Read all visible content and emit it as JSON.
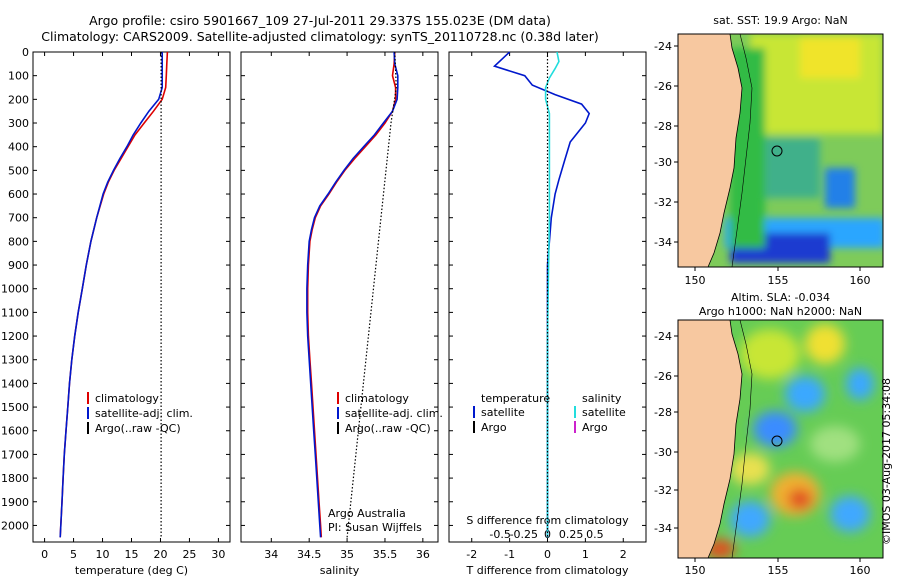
{
  "header": {
    "title_line1": "Argo profile: csiro 5901667_109 27-Jul-2011 29.337S 155.023E (DM data)",
    "title_line2": "Climatology: CARS2009. Satellite-adjusted climatology: synTS_20110728.nc (0.38d later)"
  },
  "colors": {
    "climatology": "#dd0000",
    "satellite": "#0018cc",
    "argo": "#000000",
    "s_satellite": "#22dddd",
    "s_argo": "#cc22cc",
    "land": "#f7c8a0"
  },
  "chart_data": [
    {
      "type": "line",
      "name": "temperature-profile",
      "xlabel": "temperature (deg C)",
      "xlim": [
        -2,
        32
      ],
      "ylim": [
        2070,
        0
      ],
      "xticks": [
        0,
        5,
        10,
        15,
        20,
        25,
        30
      ],
      "yticks": [
        0,
        100,
        200,
        300,
        400,
        500,
        600,
        700,
        800,
        900,
        1000,
        1100,
        1200,
        1300,
        1400,
        1500,
        1600,
        1700,
        1800,
        1900,
        2000
      ],
      "series": [
        {
          "name": "climatology",
          "color": "#dd0000",
          "points": [
            [
              21.2,
              0
            ],
            [
              21.1,
              50
            ],
            [
              21.0,
              100
            ],
            [
              20.9,
              150
            ],
            [
              20.3,
              200
            ],
            [
              18.8,
              250
            ],
            [
              17.2,
              300
            ],
            [
              15.6,
              350
            ],
            [
              14.4,
              400
            ],
            [
              13.2,
              450
            ],
            [
              12.0,
              500
            ],
            [
              11.0,
              550
            ],
            [
              10.2,
              600
            ],
            [
              9.0,
              700
            ],
            [
              8.0,
              800
            ],
            [
              7.2,
              900
            ],
            [
              6.5,
              1000
            ],
            [
              5.8,
              1100
            ],
            [
              5.2,
              1200
            ],
            [
              4.7,
              1300
            ],
            [
              4.3,
              1400
            ],
            [
              4.0,
              1500
            ],
            [
              3.7,
              1600
            ],
            [
              3.4,
              1700
            ],
            [
              3.2,
              1800
            ],
            [
              3.0,
              1900
            ],
            [
              2.8,
              2000
            ],
            [
              2.7,
              2050
            ]
          ]
        },
        {
          "name": "satellite-adj. clim.",
          "color": "#0018cc",
          "points": [
            [
              20.3,
              0
            ],
            [
              20.3,
              50
            ],
            [
              20.3,
              100
            ],
            [
              20.3,
              150
            ],
            [
              19.7,
              200
            ],
            [
              18.0,
              250
            ],
            [
              16.6,
              300
            ],
            [
              15.3,
              350
            ],
            [
              14.2,
              400
            ],
            [
              13.0,
              450
            ],
            [
              11.9,
              500
            ],
            [
              10.9,
              550
            ],
            [
              10.1,
              600
            ],
            [
              9.0,
              700
            ],
            [
              8.0,
              800
            ],
            [
              7.2,
              900
            ],
            [
              6.5,
              1000
            ],
            [
              5.8,
              1100
            ],
            [
              5.2,
              1200
            ],
            [
              4.7,
              1300
            ],
            [
              4.3,
              1400
            ],
            [
              4.0,
              1500
            ],
            [
              3.7,
              1600
            ],
            [
              3.4,
              1700
            ],
            [
              3.2,
              1800
            ],
            [
              3.0,
              1900
            ],
            [
              2.8,
              2000
            ],
            [
              2.7,
              2050
            ]
          ]
        },
        {
          "name": "Argo(..raw -QC)",
          "color": "#000000",
          "dotted": true,
          "points": [
            [
              20.1,
              0
            ],
            [
              20.1,
              2050
            ]
          ]
        }
      ],
      "legend": [
        "climatology",
        "satellite-adj. clim.",
        "Argo(..raw -QC)"
      ]
    },
    {
      "type": "line",
      "name": "salinity-profile",
      "xlabel": "salinity",
      "xlim": [
        33.6,
        36.2
      ],
      "ylim": [
        2070,
        0
      ],
      "xticks": [
        34,
        34.5,
        35,
        35.5,
        36
      ],
      "xticklabels": [
        "34",
        "34.5",
        "35",
        "35.5",
        "36"
      ],
      "series": [
        {
          "name": "climatology",
          "color": "#dd0000",
          "points": [
            [
              35.63,
              0
            ],
            [
              35.62,
              50
            ],
            [
              35.6,
              100
            ],
            [
              35.64,
              150
            ],
            [
              35.64,
              200
            ],
            [
              35.6,
              250
            ],
            [
              35.5,
              300
            ],
            [
              35.38,
              350
            ],
            [
              35.24,
              400
            ],
            [
              35.1,
              450
            ],
            [
              34.97,
              500
            ],
            [
              34.86,
              550
            ],
            [
              34.76,
              600
            ],
            [
              34.65,
              650
            ],
            [
              34.58,
              700
            ],
            [
              34.54,
              750
            ],
            [
              34.51,
              800
            ],
            [
              34.49,
              900
            ],
            [
              34.48,
              1000
            ],
            [
              34.48,
              1100
            ],
            [
              34.49,
              1200
            ],
            [
              34.51,
              1300
            ],
            [
              34.53,
              1400
            ],
            [
              34.55,
              1500
            ],
            [
              34.57,
              1600
            ],
            [
              34.59,
              1700
            ],
            [
              34.61,
              1800
            ],
            [
              34.63,
              1900
            ],
            [
              34.65,
              2000
            ],
            [
              34.66,
              2050
            ]
          ]
        },
        {
          "name": "satellite-adj. clim.",
          "color": "#0018cc",
          "points": [
            [
              35.62,
              0
            ],
            [
              35.63,
              50
            ],
            [
              35.67,
              100
            ],
            [
              35.67,
              150
            ],
            [
              35.66,
              200
            ],
            [
              35.6,
              250
            ],
            [
              35.48,
              300
            ],
            [
              35.36,
              350
            ],
            [
              35.22,
              400
            ],
            [
              35.08,
              450
            ],
            [
              34.96,
              500
            ],
            [
              34.85,
              550
            ],
            [
              34.75,
              600
            ],
            [
              34.64,
              650
            ],
            [
              34.57,
              700
            ],
            [
              34.53,
              750
            ],
            [
              34.5,
              800
            ],
            [
              34.48,
              900
            ],
            [
              34.47,
              1000
            ],
            [
              34.47,
              1100
            ],
            [
              34.48,
              1200
            ],
            [
              34.5,
              1300
            ],
            [
              34.52,
              1400
            ],
            [
              34.54,
              1500
            ],
            [
              34.56,
              1600
            ],
            [
              34.58,
              1700
            ],
            [
              34.6,
              1800
            ],
            [
              34.62,
              1900
            ],
            [
              34.64,
              2000
            ],
            [
              34.65,
              2050
            ]
          ]
        },
        {
          "name": "Argo(..raw -QC)",
          "color": "#000000",
          "dotted": true,
          "points": [
            [
              35.63,
              0
            ],
            [
              35.65,
              150
            ],
            [
              35.58,
              300
            ],
            [
              35.0,
              2050
            ]
          ]
        }
      ],
      "legend": [
        "climatology",
        "satellite-adj. clim.",
        "Argo(..raw -QC)"
      ],
      "annotation": [
        "Argo Australia",
        "PI: Susan Wijffels"
      ]
    },
    {
      "type": "line",
      "name": "difference-profile",
      "xlabel_top": "S difference from climatology",
      "xlabel": "T difference from climatology",
      "xlim": [
        -2.6,
        2.6
      ],
      "ylim": [
        2070,
        0
      ],
      "xticks": [
        -2,
        -1,
        0,
        1,
        2
      ],
      "top_ticks": [
        {
          "v": -1.25,
          "label": "-0.5"
        },
        {
          "v": -0.625,
          "label": "-0.25"
        },
        {
          "v": 0,
          "label": "0"
        },
        {
          "v": 0.625,
          "label": "0.25"
        },
        {
          "v": 1.25,
          "label": "0.5"
        }
      ],
      "series": [
        {
          "name": "T satellite",
          "color": "#0018cc",
          "points": [
            [
              -1.0,
              0
            ],
            [
              -1.4,
              60
            ],
            [
              -0.6,
              100
            ],
            [
              -0.4,
              140
            ],
            [
              0.2,
              180
            ],
            [
              0.9,
              220
            ],
            [
              1.1,
              260
            ],
            [
              1.0,
              300
            ],
            [
              0.6,
              380
            ],
            [
              0.45,
              460
            ],
            [
              0.3,
              540
            ],
            [
              0.2,
              600
            ],
            [
              0.1,
              700
            ],
            [
              0.05,
              800
            ],
            [
              0.0,
              900
            ],
            [
              0.0,
              2050
            ]
          ]
        },
        {
          "name": "S satellite",
          "color": "#22dddd",
          "points": [
            [
              0.25,
              0
            ],
            [
              0.3,
              40
            ],
            [
              0.2,
              70
            ],
            [
              0.05,
              110
            ],
            [
              -0.05,
              150
            ],
            [
              -0.05,
              200
            ],
            [
              0.05,
              260
            ],
            [
              0.05,
              350
            ],
            [
              0.05,
              500
            ],
            [
              0.05,
              700
            ],
            [
              0.03,
              900
            ],
            [
              0.0,
              1200
            ],
            [
              0.0,
              2050
            ]
          ]
        },
        {
          "name": "zero",
          "color": "#000000",
          "dotted": true,
          "points": [
            [
              0,
              0
            ],
            [
              0,
              2050
            ]
          ]
        }
      ],
      "legend_left": {
        "header": "temperature",
        "items": [
          "satellite",
          "Argo"
        ]
      },
      "legend_right": {
        "header": "salinity",
        "items": [
          "satellite",
          "Argo"
        ]
      }
    }
  ],
  "maps": [
    {
      "name": "sst-map",
      "title": "sat. SST: 19.9 Argo: NaN",
      "xticks": [
        "150",
        "155",
        "160"
      ],
      "yticks": [
        "-24",
        "-26",
        "-28",
        "-30",
        "-32",
        "-34"
      ]
    },
    {
      "name": "sla-map",
      "title_line1": "Altim. SLA: -0.034",
      "title_line2": "Argo h1000: NaN h2000: NaN",
      "xticks": [
        "150",
        "155",
        "160"
      ],
      "yticks": [
        "-24",
        "-26",
        "-28",
        "-30",
        "-32",
        "-34"
      ]
    }
  ],
  "footer": {
    "imos_stamp": "©IMOS 03-Aug-2017 05:34:08"
  }
}
